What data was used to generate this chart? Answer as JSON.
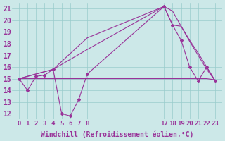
{
  "bg_color": "#cce8e8",
  "line_color": "#993399",
  "grid_color": "#99cccc",
  "xlabel": "Windchill (Refroidissement éolien,°C)",
  "xlabel_fontsize": 7.0,
  "ytick_fontsize": 7,
  "xtick_fontsize": 6.5,
  "ylim": [
    11.5,
    21.5
  ],
  "lines": [
    {
      "x": [
        0,
        1,
        2,
        3,
        4,
        5,
        6,
        7,
        8,
        17,
        18,
        19,
        20,
        21,
        22,
        23
      ],
      "y": [
        15.0,
        14.0,
        15.2,
        15.3,
        15.8,
        12.0,
        11.8,
        13.2,
        15.4,
        21.2,
        19.6,
        18.3,
        16.0,
        14.8,
        16.0,
        14.8
      ],
      "marker": "D",
      "markersize": 2.0,
      "linewidth": 0.8
    },
    {
      "x": [
        0,
        4,
        8,
        17,
        18,
        19,
        20,
        21,
        22,
        23
      ],
      "y": [
        15.0,
        15.8,
        17.5,
        21.2,
        19.6,
        19.5,
        18.3,
        17.2,
        16.0,
        14.8
      ],
      "marker": null,
      "markersize": 0,
      "linewidth": 0.8
    },
    {
      "x": [
        0,
        4,
        8,
        17,
        18,
        19,
        20,
        21,
        22,
        23
      ],
      "y": [
        15.0,
        15.8,
        18.5,
        21.2,
        20.8,
        19.5,
        18.2,
        17.0,
        15.8,
        14.8
      ],
      "marker": null,
      "markersize": 0,
      "linewidth": 0.8
    },
    {
      "x": [
        0,
        8,
        17,
        18,
        19,
        20,
        21,
        22,
        23
      ],
      "y": [
        15.0,
        15.0,
        15.0,
        15.0,
        15.0,
        15.0,
        15.0,
        15.0,
        14.9
      ],
      "marker": null,
      "markersize": 0,
      "linewidth": 0.8
    }
  ],
  "xticks_show": [
    0,
    1,
    2,
    3,
    4,
    5,
    6,
    7,
    8,
    17,
    18,
    19,
    20,
    21,
    22,
    23
  ],
  "yticks": [
    12,
    13,
    14,
    15,
    16,
    17,
    18,
    19,
    20,
    21
  ],
  "xlim": [
    -0.8,
    23.8
  ]
}
